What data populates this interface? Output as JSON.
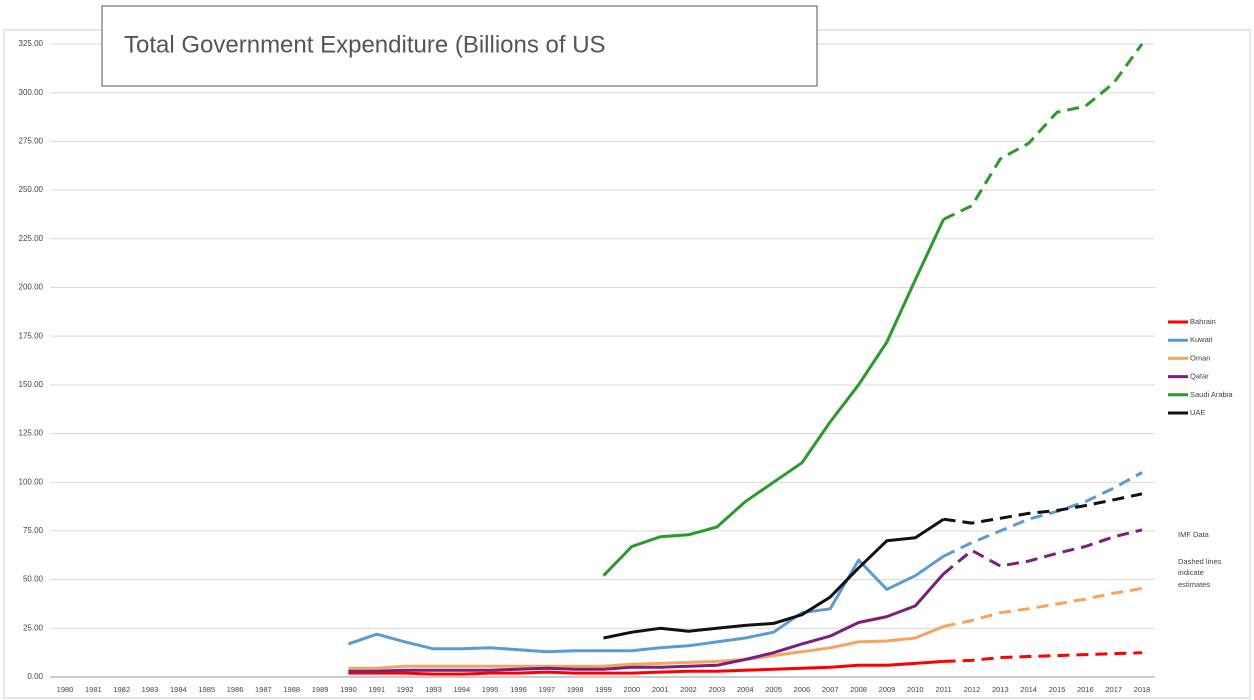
{
  "chart_data": {
    "type": "line",
    "title": "Total Government Expenditure (Billions of US",
    "categories": [
      "1980",
      "1981",
      "1982",
      "1983",
      "1984",
      "1985",
      "1986",
      "1987",
      "1988",
      "1989",
      "1990",
      "1991",
      "1992",
      "1993",
      "1994",
      "1995",
      "1996",
      "1997",
      "1998",
      "1999",
      "2000",
      "2001",
      "2002",
      "2003",
      "2004",
      "2005",
      "2006",
      "2007",
      "2008",
      "2009",
      "2010",
      "2011",
      "2012",
      "2013",
      "2014",
      "2015",
      "2016",
      "2017",
      "2018"
    ],
    "estimates_start": "2011",
    "series": [
      {
        "name": "Bahrain",
        "color": "#ff0000",
        "values": [
          null,
          null,
          null,
          null,
          null,
          null,
          null,
          null,
          null,
          null,
          2,
          2,
          2,
          1.5,
          1.5,
          2,
          2,
          2.5,
          2,
          2,
          2,
          2.5,
          3,
          3,
          3.5,
          4,
          4.5,
          5,
          6,
          6,
          7,
          8,
          8.5,
          10,
          10.5,
          11,
          11.5,
          12,
          12.5
        ]
      },
      {
        "name": "Kuwait",
        "color": "#5b9bd5",
        "values": [
          null,
          null,
          null,
          null,
          null,
          null,
          null,
          null,
          null,
          null,
          17,
          22,
          18,
          14.5,
          14.5,
          15,
          14,
          13,
          13.5,
          13.5,
          13.5,
          15,
          16,
          18,
          20,
          23,
          33,
          35,
          60,
          45,
          52,
          62,
          69,
          75,
          81,
          85,
          90,
          97,
          105
        ]
      },
      {
        "name": "Oman",
        "color": "#f4a460",
        "values": [
          null,
          null,
          null,
          null,
          null,
          null,
          null,
          null,
          null,
          null,
          4.5,
          4.5,
          5.5,
          5.5,
          5.5,
          5.5,
          5.5,
          5.5,
          5.5,
          5.5,
          6.5,
          7,
          7.5,
          8,
          9,
          11,
          13,
          15,
          18,
          18.5,
          20,
          26,
          29,
          33,
          35,
          37.5,
          40,
          43,
          45.5
        ]
      },
      {
        "name": "Qatar",
        "color": "#7b1f7b",
        "values": [
          null,
          null,
          null,
          null,
          null,
          null,
          null,
          null,
          null,
          null,
          3,
          3,
          3.5,
          3.5,
          3.5,
          3.5,
          4,
          4.5,
          4,
          4,
          5,
          5,
          5.5,
          6,
          9,
          12.5,
          17,
          21,
          28,
          31,
          36.5,
          53,
          65,
          57,
          59.5,
          63.5,
          67,
          72,
          75.5
        ]
      },
      {
        "name": "Saudi Arabia",
        "color": "#2a9a2a",
        "values": [
          null,
          null,
          null,
          null,
          null,
          null,
          null,
          null,
          null,
          null,
          null,
          null,
          null,
          null,
          null,
          null,
          null,
          null,
          null,
          52,
          67,
          72,
          73,
          77,
          90,
          100,
          110,
          131,
          150,
          172,
          204,
          235,
          242,
          266,
          274,
          290,
          293,
          305,
          325
        ]
      },
      {
        "name": "UAE",
        "color": "#111111",
        "values": [
          null,
          null,
          null,
          null,
          null,
          null,
          null,
          null,
          null,
          null,
          null,
          null,
          null,
          null,
          null,
          null,
          null,
          null,
          null,
          20,
          23,
          25,
          23.5,
          25,
          26.5,
          27.5,
          32,
          41,
          56,
          70,
          71.5,
          81,
          79,
          81.5,
          84,
          85.5,
          88,
          91,
          94
        ]
      }
    ],
    "ylim": [
      0,
      325
    ],
    "yticks": [
      {
        "value": 0,
        "label": "0.00"
      },
      {
        "value": 25,
        "label": "25.00"
      },
      {
        "value": 50,
        "label": "50.00"
      },
      {
        "value": 75,
        "label": "75.00"
      },
      {
        "value": 100,
        "label": "100.00"
      },
      {
        "value": 125,
        "label": "125.00"
      },
      {
        "value": 150,
        "label": "150.00"
      },
      {
        "value": 175,
        "label": "175.00"
      },
      {
        "value": 200,
        "label": "200.00"
      },
      {
        "value": 225,
        "label": "225.00"
      },
      {
        "value": 250,
        "label": "250.00"
      },
      {
        "value": 275,
        "label": "275.00"
      },
      {
        "value": 300,
        "label": "300.00"
      },
      {
        "value": 325,
        "label": "325.00"
      }
    ],
    "grid": true,
    "legend": "right",
    "annotations": [
      "IMF Data",
      "Dashed lines",
      "indicate",
      "estimates"
    ]
  }
}
